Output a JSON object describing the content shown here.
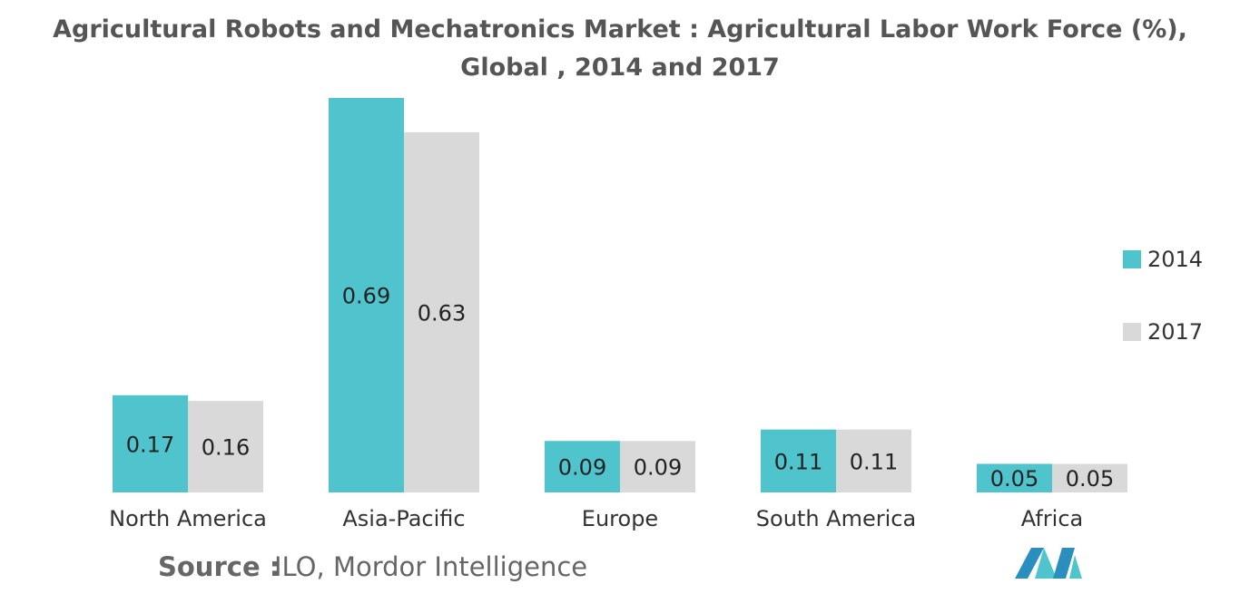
{
  "chart_data": {
    "type": "bar",
    "title": "Agricultural Robots and Mechatronics Market : Agricultural Labor Work Force (%), Global , 2014 and 2017",
    "categories": [
      "North America",
      "Asia-Pacific",
      "Europe",
      "South America",
      "Africa"
    ],
    "series": [
      {
        "name": "2014",
        "color": "#4fc4cc",
        "values": [
          0.17,
          0.69,
          0.09,
          0.11,
          0.05
        ]
      },
      {
        "name": "2017",
        "color": "#d9d9d9",
        "values": [
          0.16,
          0.63,
          0.09,
          0.11,
          0.05
        ]
      }
    ],
    "legend": "right",
    "source_label": "Source :",
    "source": "ILO, Mordor Intelligence"
  }
}
